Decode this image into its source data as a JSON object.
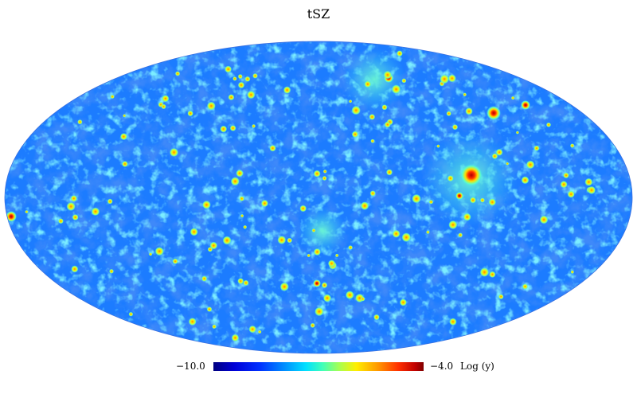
{
  "title": "tSZ",
  "colorbar": {
    "min_label": "−10.0",
    "max_label": "−4.0",
    "unit_label": "Log (y)",
    "min": -10.0,
    "max": -4.0,
    "colormap": [
      "#00007f",
      "#0000d8",
      "#0030ff",
      "#0090ff",
      "#00e0ff",
      "#40ffb8",
      "#a8ff50",
      "#ffee00",
      "#ff9a00",
      "#ff3000",
      "#c00000",
      "#7f0000"
    ]
  },
  "projection": "mollweide",
  "colors": {
    "background": "#ffffff",
    "map_base": "#1c7cff",
    "void": "#0a2fd8",
    "filament": "#36d2f0",
    "hotspot_high": "#e00000"
  }
}
